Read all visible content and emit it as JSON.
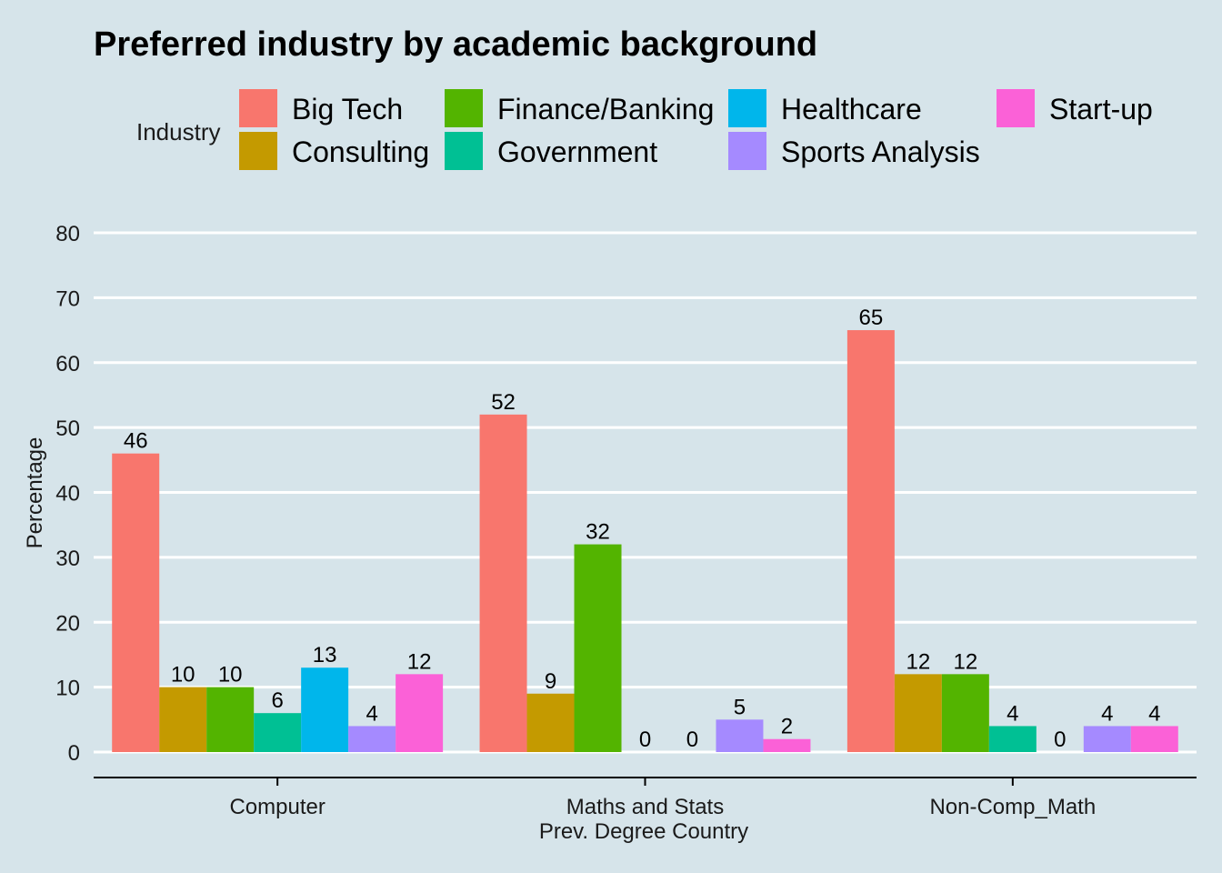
{
  "chart_data": {
    "type": "bar",
    "title": "Preferred industry by academic background",
    "xlabel": "Prev. Degree Country",
    "ylabel": "Percentage",
    "legend_title": "Industry",
    "legend_position": "top",
    "grid": true,
    "ylim": [
      0,
      80
    ],
    "yticks": [
      0,
      10,
      20,
      30,
      40,
      50,
      60,
      70,
      80
    ],
    "categories": [
      "Computer",
      "Maths and Stats",
      "Non-Comp_Math"
    ],
    "series": [
      {
        "name": "Big Tech",
        "color": "#F8766D",
        "values": [
          46,
          52,
          65
        ]
      },
      {
        "name": "Consulting",
        "color": "#C49A00",
        "values": [
          10,
          9,
          12
        ]
      },
      {
        "name": "Finance/Banking",
        "color": "#53B400",
        "values": [
          10,
          32,
          12
        ]
      },
      {
        "name": "Government",
        "color": "#00C094",
        "values": [
          6,
          0,
          4
        ]
      },
      {
        "name": "Healthcare",
        "color": "#00B6EB",
        "values": [
          13,
          0,
          0
        ]
      },
      {
        "name": "Sports Analysis",
        "color": "#A58AFF",
        "values": [
          4,
          5,
          4
        ]
      },
      {
        "name": "Start-up",
        "color": "#FB61D7",
        "values": [
          12,
          2,
          4
        ]
      }
    ]
  }
}
